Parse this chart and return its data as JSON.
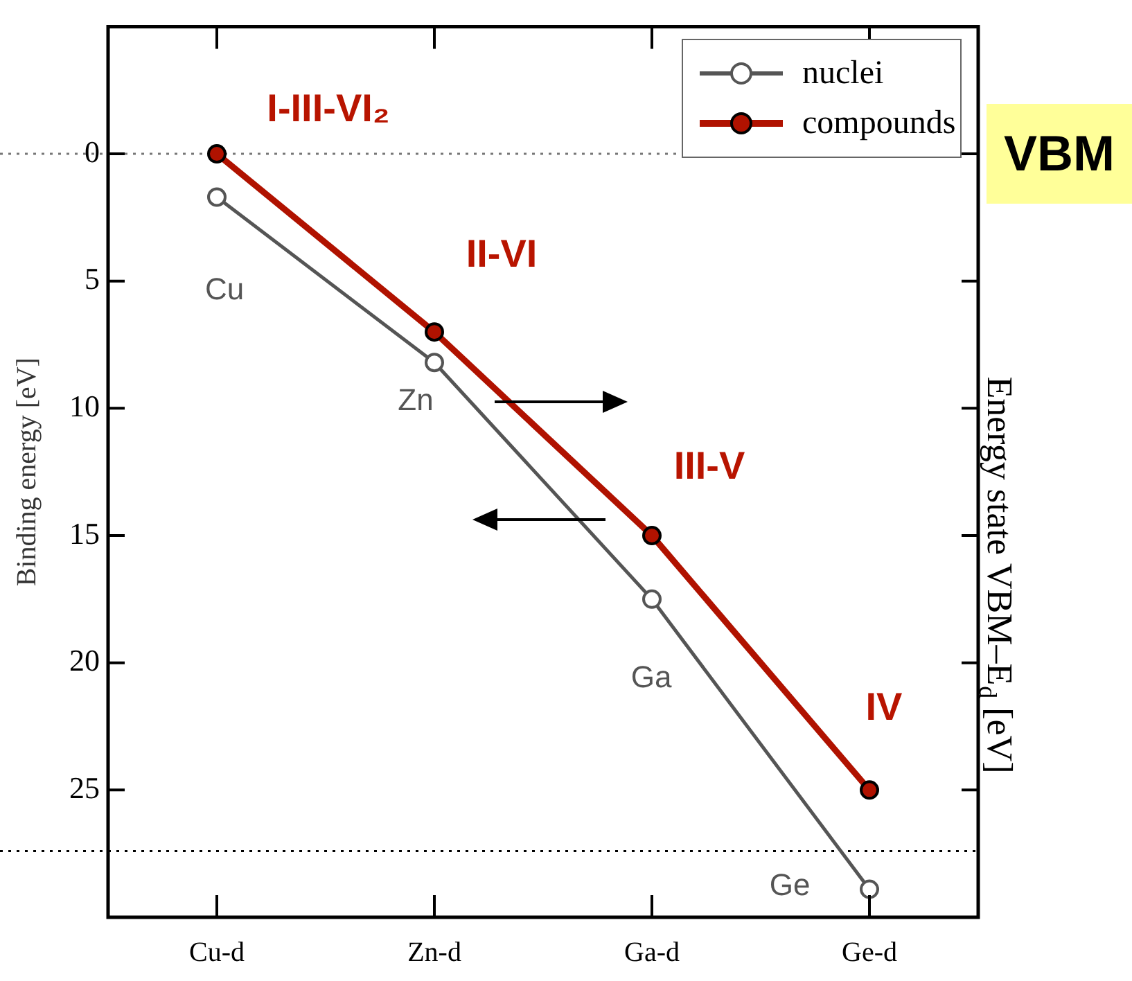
{
  "chart_data": {
    "type": "line",
    "ylabel": "Binding energy [eV]",
    "y2label": "Energy state VBM–E$_{d}$ [eV]",
    "categories": [
      "Cu-d",
      "Zn-d",
      "Ga-d",
      "Ge-d"
    ],
    "series": [
      {
        "name": "nuclei",
        "color": "#555555",
        "values": [
          1.7,
          8.2,
          17.5,
          28.9
        ]
      },
      {
        "name": "compounds",
        "color": "#b01200",
        "values": [
          0,
          7.0,
          15.0,
          25.0
        ]
      }
    ],
    "ylim": [
      30,
      -5
    ],
    "yticks": [
      0,
      5,
      10,
      15,
      20,
      25
    ],
    "grid": false,
    "legend": "top right",
    "marker": "circle",
    "line_style": "solid",
    "ref_lines": [
      {
        "axis": "y",
        "value": 0,
        "color": "#777777",
        "line_style": "dotted"
      },
      {
        "axis": "y",
        "value": 27.4,
        "color": "#000000",
        "line_style": "dotted"
      }
    ],
    "annotations": [
      "I-III-VI₂",
      "II-VI",
      "III-V",
      "IV",
      "Cu",
      "Zn",
      "Ga",
      "Ge",
      "VBM"
    ]
  }
}
